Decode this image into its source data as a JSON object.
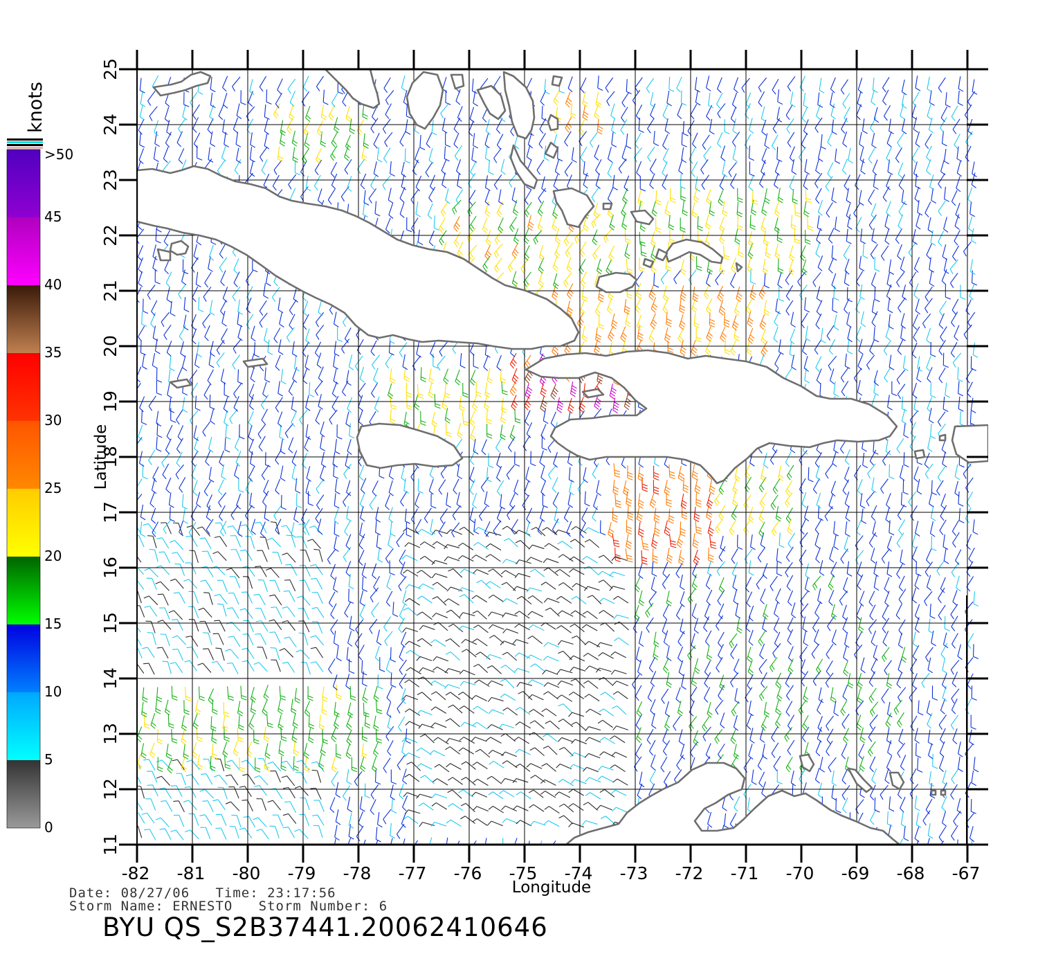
{
  "map": {
    "xlabel": "Longitude",
    "ylabel": "Latitude",
    "lon_ticks": [
      -82,
      -81,
      -80,
      -79,
      -78,
      -77,
      -76,
      -75,
      -74,
      -73,
      -72,
      -71,
      -70,
      -69,
      -68,
      -67
    ],
    "lat_ticks": [
      11,
      12,
      13,
      14,
      15,
      16,
      17,
      18,
      19,
      20,
      21,
      22,
      23,
      24,
      25
    ],
    "lon_range": [
      -82,
      -66.6
    ],
    "lat_range": [
      11,
      25
    ],
    "land_color": "#ffffff",
    "coast_color": "#6e6e6e",
    "grid": true
  },
  "legend": {
    "unit": "knots",
    "labels": [
      ">50",
      "45",
      "40",
      "35",
      "30",
      "25",
      "20",
      "15",
      "10",
      "5",
      "0"
    ],
    "bands": [
      {
        "from": 0,
        "to": 5,
        "top": "#333333",
        "bottom": "#9a9a9a"
      },
      {
        "from": 5,
        "to": 10,
        "top": "#00a8ff",
        "bottom": "#00ffff"
      },
      {
        "from": 10,
        "to": 15,
        "top": "#0000e0",
        "bottom": "#0080ff"
      },
      {
        "from": 15,
        "to": 20,
        "top": "#006400",
        "bottom": "#00ff00"
      },
      {
        "from": 20,
        "to": 25,
        "top": "#ffcc00",
        "bottom": "#ffff00"
      },
      {
        "from": 25,
        "to": 30,
        "top": "#ff5500",
        "bottom": "#ff8800"
      },
      {
        "from": 30,
        "to": 35,
        "top": "#ff0000",
        "bottom": "#ff3300"
      },
      {
        "from": 35,
        "to": 40,
        "top": "#3a1a0a",
        "bottom": "#c08050"
      },
      {
        "from": 40,
        "to": 45,
        "top": "#b000c0",
        "bottom": "#ff00ff"
      },
      {
        "from": 45,
        "to": 50,
        "top": "#5000c0",
        "bottom": "#9000d0"
      }
    ]
  },
  "info": {
    "date_line": "Date: 08/27/06   Time: 23:17:56",
    "storm_line": "Storm Name: ERNESTO   Storm Number: 6",
    "file_name": "BYU QS_S2B37441.20062410646"
  },
  "chart_data": {
    "type": "wind-barbs",
    "title": "BYU QS_S2B37441.20062410646",
    "xlabel": "Longitude",
    "ylabel": "Latitude",
    "xlim": [
      -82,
      -66.6
    ],
    "ylim": [
      11,
      25
    ],
    "units": "knots",
    "regions": [
      {
        "lon": [
          -73.4,
          -71.6
        ],
        "lat": [
          16.2,
          17.9
        ],
        "speed": [
          25,
          32
        ],
        "dir_deg": 95
      },
      {
        "lon": [
          -75.3,
          -73.0
        ],
        "lat": [
          18.9,
          19.9
        ],
        "speed": [
          26,
          45
        ],
        "dir_deg": 110
      },
      {
        "lon": [
          -77.5,
          -75.1
        ],
        "lat": [
          18.4,
          19.8
        ],
        "speed": [
          18,
          25
        ],
        "dir_deg": 100
      },
      {
        "lon": [
          -74.6,
          -70.5
        ],
        "lat": [
          20.1,
          21.2
        ],
        "speed": [
          20,
          30
        ],
        "dir_deg": 105
      },
      {
        "lon": [
          -76.5,
          -73.2
        ],
        "lat": [
          21.0,
          22.6
        ],
        "speed": [
          18,
          26
        ],
        "dir_deg": 120
      },
      {
        "lon": [
          -73.2,
          -69.8
        ],
        "lat": [
          21.6,
          23.0
        ],
        "speed": [
          17,
          24
        ],
        "dir_deg": 100
      },
      {
        "lon": [
          -79.6,
          -77.8
        ],
        "lat": [
          23.4,
          24.4
        ],
        "speed": [
          15,
          25
        ],
        "dir_deg": 110
      },
      {
        "lon": [
          -74.4,
          -73.6
        ],
        "lat": [
          24.0,
          24.6
        ],
        "speed": [
          20,
          26
        ],
        "dir_deg": 110
      },
      {
        "lon": [
          -71.6,
          -70.0
        ],
        "lat": [
          16.8,
          18.0
        ],
        "speed": [
          17,
          23
        ],
        "dir_deg": 115
      },
      {
        "lon": [
          -82.0,
          -77.6
        ],
        "lat": [
          12.6,
          14.0
        ],
        "speed": [
          15,
          22
        ],
        "dir_deg": 100
      },
      {
        "lon": [
          -82.0,
          -78.6
        ],
        "lat": [
          11.0,
          16.8
        ],
        "speed": [
          3,
          9
        ],
        "dir_deg": 240
      },
      {
        "lon": [
          -77.0,
          -73.0
        ],
        "lat": [
          11.2,
          16.8
        ],
        "speed": [
          2,
          6
        ],
        "dir_deg": 210
      },
      {
        "lon": [
          -73.0,
          -68.0
        ],
        "lat": [
          12.5,
          16.0
        ],
        "speed": [
          10,
          17
        ],
        "dir_deg": 115
      },
      {
        "lon": [
          -70.0,
          -66.6
        ],
        "lat": [
          22.0,
          25.0
        ],
        "speed": [
          8,
          14
        ],
        "dir_deg": 110
      }
    ]
  }
}
